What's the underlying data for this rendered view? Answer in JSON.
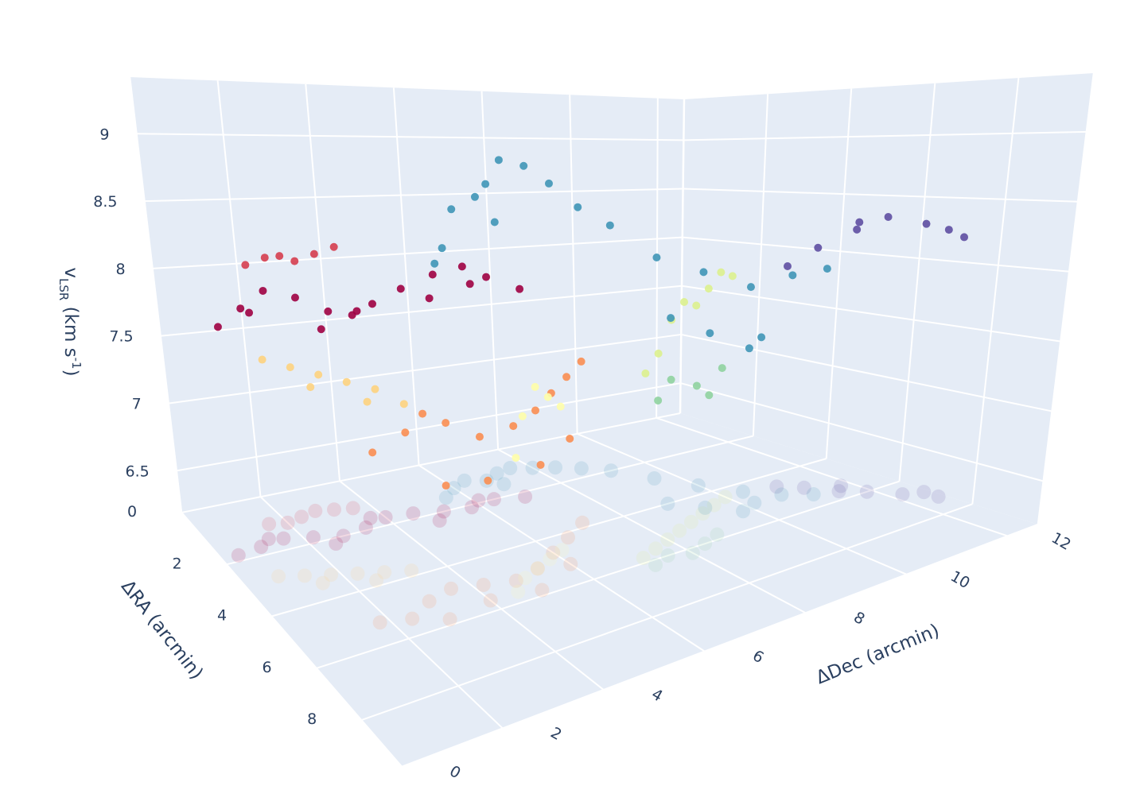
{
  "chart_data": {
    "type": "scatter3d",
    "xaxis_title": "ΔDec (arcmin)",
    "yaxis_title": "ΔRA (arcmin)",
    "zaxis_title": {
      "base": "v",
      "sub": "LSR",
      "mid": " (km s",
      "sup": "-1",
      "end": ")"
    },
    "xlim": [
      0,
      12.6
    ],
    "ylim": [
      0,
      9.8
    ],
    "zlim": [
      6.19,
      9.42
    ],
    "xticks": [
      0,
      2,
      4,
      6,
      8,
      10,
      12
    ],
    "yticks": [
      0,
      2,
      4,
      6,
      8
    ],
    "zticks": [
      6.5,
      7,
      7.5,
      8,
      8.5,
      9
    ],
    "grid": true,
    "floor_projection": true,
    "series": [
      {
        "color": "#9e0142",
        "x": [
          0.4,
          1.0,
          1.6,
          2.2,
          2.8,
          3.4,
          4.0,
          4.6,
          5.2,
          5.8,
          6.4,
          7.0,
          1.3,
          2.5,
          3.7,
          4.9,
          6.1
        ],
        "y": [
          1.8,
          1.7,
          1.6,
          1.8,
          2.0,
          1.9,
          1.7,
          1.8,
          2.0,
          2.1,
          2.0,
          2.2,
          1.5,
          2.2,
          1.6,
          2.3,
          1.9
        ],
        "z": [
          7.7,
          7.8,
          7.9,
          7.85,
          7.75,
          7.7,
          7.75,
          7.85,
          7.95,
          8.0,
          7.9,
          7.8,
          7.75,
          7.65,
          7.7,
          7.8,
          7.85
        ]
      },
      {
        "color": "#d53e4f",
        "x": [
          1.6,
          2.0,
          2.4,
          2.8,
          3.2,
          3.6
        ],
        "y": [
          1.0,
          1.1,
          1.0,
          0.9,
          1.0,
          1.1
        ],
        "z": [
          8.05,
          8.1,
          8.1,
          8.05,
          8.1,
          8.15
        ]
      },
      {
        "color": "#f98e52",
        "x": [
          1.8,
          2.4,
          3.0,
          3.6,
          4.2,
          4.8,
          5.4,
          6.0,
          6.6,
          7.2,
          3.0,
          4.0,
          5.0,
          6.0
        ],
        "y": [
          5.2,
          5.4,
          5.0,
          4.8,
          5.0,
          5.2,
          5.0,
          4.6,
          4.2,
          3.8,
          5.8,
          5.6,
          5.8,
          5.2
        ],
        "z": [
          7.15,
          7.25,
          7.3,
          7.2,
          7.1,
          7.15,
          7.2,
          7.25,
          7.3,
          7.35,
          6.95,
          6.9,
          6.95,
          7.0
        ]
      },
      {
        "color": "#fdd380",
        "x": [
          0.8,
          1.3,
          1.8,
          2.3,
          2.8,
          3.3,
          1.5,
          2.5
        ],
        "y": [
          2.8,
          3.0,
          3.2,
          3.4,
          3.6,
          3.8,
          3.4,
          3.8
        ],
        "z": [
          7.55,
          7.5,
          7.45,
          7.4,
          7.35,
          7.25,
          7.4,
          7.3
        ]
      },
      {
        "color": "#fefeaa",
        "x": [
          4.6,
          5.0,
          5.4,
          5.8,
          6.2
        ],
        "y": [
          5.6,
          5.2,
          5.0,
          4.8,
          4.6
        ],
        "z": [
          7.0,
          7.2,
          7.35,
          7.25,
          7.15
        ]
      },
      {
        "color": "#dcf18e",
        "x": [
          7.2,
          7.6,
          8.0,
          8.4,
          8.8,
          9.2,
          9.6,
          10.0
        ],
        "y": [
          5.8,
          5.6,
          5.4,
          5.2,
          5.0,
          4.8,
          4.6,
          4.4
        ],
        "z": [
          7.4,
          7.5,
          7.7,
          7.8,
          7.75,
          7.85,
          7.95,
          7.9
        ]
      },
      {
        "color": "#8fd3a0",
        "x": [
          7.2,
          7.6,
          8.0,
          8.4,
          8.8
        ],
        "y": [
          6.2,
          6.0,
          6.2,
          6.0,
          5.8
        ],
        "z": [
          7.25,
          7.35,
          7.3,
          7.2,
          7.35
        ]
      },
      {
        "color": "#3f96b7",
        "x": [
          5.6,
          6.0,
          6.4,
          6.8,
          7.2,
          7.6,
          8.0,
          8.4,
          8.8,
          9.2,
          9.6,
          10.0,
          10.4,
          10.8,
          11.2,
          9.0,
          9.4,
          9.8,
          10.2,
          7.0
        ],
        "y": [
          1.5,
          1.2,
          1.0,
          1.2,
          1.0,
          0.9,
          1.1,
          1.3,
          1.6,
          2.0,
          2.8,
          3.6,
          4.4,
          5.0,
          5.4,
          4.0,
          4.6,
          5.2,
          5.0,
          1.5
        ],
        "z": [
          8.0,
          8.1,
          8.4,
          8.5,
          8.6,
          8.8,
          8.75,
          8.6,
          8.4,
          8.25,
          8.0,
          7.9,
          7.8,
          7.9,
          7.95,
          7.6,
          7.5,
          7.4,
          7.45,
          8.3
        ]
      },
      {
        "color": "#5e4fa2",
        "x": [
          11.0,
          11.3,
          11.6,
          11.9,
          12.2,
          12.5,
          12.5,
          11.8
        ],
        "y": [
          4.6,
          5.0,
          5.6,
          6.0,
          6.6,
          7.2,
          6.8,
          5.4
        ],
        "z": [
          7.95,
          8.1,
          8.25,
          8.35,
          8.3,
          8.2,
          8.25,
          8.3
        ]
      }
    ]
  }
}
